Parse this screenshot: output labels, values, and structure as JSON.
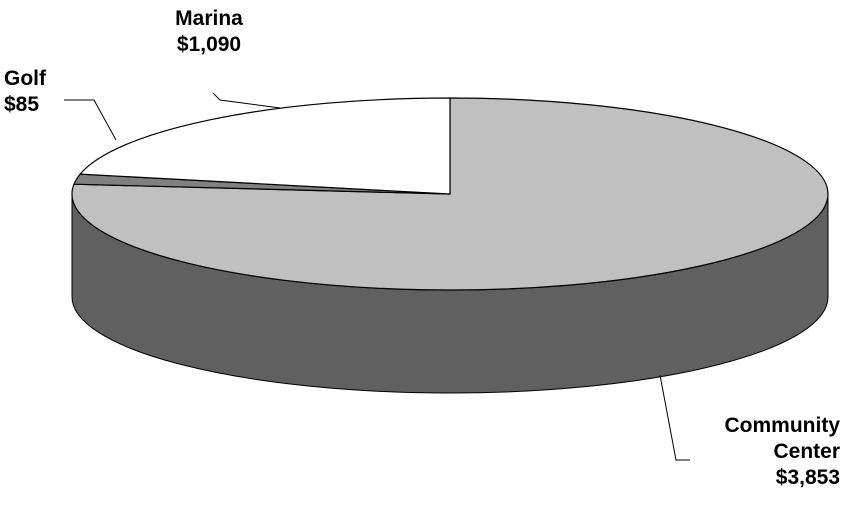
{
  "chart_data": {
    "type": "pie",
    "title": "",
    "slices": [
      {
        "name": "Community Center",
        "value": 3853,
        "label_line1": "Community",
        "label_line2": "Center",
        "value_label": "$3,853",
        "color": "#c0c0c0",
        "side_color": "#606060"
      },
      {
        "name": "Golf",
        "value": 85,
        "label_line1": "Golf",
        "value_label": "$85",
        "color": "#808080",
        "side_color": "#404040"
      },
      {
        "name": "Marina",
        "value": 1090,
        "label_line1": "Marina",
        "value_label": "$1,090",
        "color": "#ffffff",
        "side_color": "#d9d9d9"
      }
    ],
    "outline_color": "#000000"
  }
}
